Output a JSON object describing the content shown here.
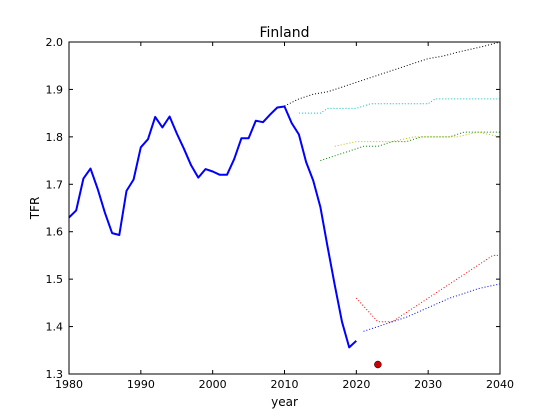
{
  "chart_data": {
    "type": "line",
    "title": "Finland",
    "xlabel": "year",
    "ylabel": "TFR",
    "xlim": [
      1980,
      2040
    ],
    "ylim": [
      1.3,
      2.0
    ],
    "x_ticks": [
      "1980",
      "1990",
      "2000",
      "2010",
      "2020",
      "2030",
      "2040"
    ],
    "y_ticks": [
      "1.3",
      "1.4",
      "1.5",
      "1.6",
      "1.7",
      "1.8",
      "1.9",
      "2.0"
    ],
    "grid": false,
    "legend": "none",
    "series": [
      {
        "color": "#0000ff",
        "style": "solid",
        "x": [
          1980,
          1981,
          1982,
          1983,
          1984,
          1985,
          1986,
          1987,
          1988,
          1989,
          1990,
          1991,
          1992,
          1993,
          1994,
          1995,
          1996,
          1997,
          1998,
          1999,
          2000,
          2001,
          2002,
          2003,
          2004,
          2005,
          2006,
          2007,
          2008,
          2009,
          2010,
          2011,
          2012,
          2013,
          2014,
          2015,
          2016,
          2017,
          2018,
          2019,
          2020
        ],
        "y": [
          1.63,
          1.645,
          1.712,
          1.733,
          1.69,
          1.64,
          1.597,
          1.593,
          1.686,
          1.71,
          1.778,
          1.795,
          1.842,
          1.82,
          1.843,
          1.807,
          1.775,
          1.74,
          1.714,
          1.732,
          1.727,
          1.72,
          1.72,
          1.753,
          1.797,
          1.797,
          1.834,
          1.831,
          1.847,
          1.862,
          1.864,
          1.829,
          1.805,
          1.747,
          1.708,
          1.652,
          1.568,
          1.487,
          1.41,
          1.356,
          1.37
        ]
      },
      {
        "color": "#000000",
        "style": "dotted",
        "x": [
          2010,
          2012,
          2014,
          2016,
          2018,
          2020,
          2022,
          2024,
          2026,
          2028,
          2030,
          2032,
          2034,
          2036,
          2038,
          2040
        ],
        "y": [
          1.865,
          1.88,
          1.89,
          1.895,
          1.905,
          1.915,
          1.925,
          1.935,
          1.945,
          1.955,
          1.965,
          1.97,
          1.978,
          1.985,
          1.992,
          2.0
        ]
      },
      {
        "color": "#00bfbf",
        "style": "dotted",
        "x": [
          2012,
          2015,
          2016,
          2020,
          2022,
          2026,
          2030,
          2031,
          2035,
          2040
        ],
        "y": [
          1.85,
          1.85,
          1.86,
          1.86,
          1.87,
          1.87,
          1.87,
          1.88,
          1.88,
          1.88
        ]
      },
      {
        "color": "#008000",
        "style": "dotted",
        "x": [
          2015,
          2017,
          2019,
          2021,
          2023,
          2025,
          2027,
          2029,
          2031,
          2033,
          2035,
          2037,
          2040
        ],
        "y": [
          1.75,
          1.76,
          1.77,
          1.78,
          1.78,
          1.79,
          1.79,
          1.8,
          1.8,
          1.8,
          1.81,
          1.81,
          1.81
        ]
      },
      {
        "color": "#bfbf00",
        "style": "dotted",
        "x": [
          2017,
          2020,
          2022,
          2025,
          2028,
          2031,
          2034,
          2037,
          2040
        ],
        "y": [
          1.78,
          1.79,
          1.79,
          1.79,
          1.8,
          1.8,
          1.8,
          1.81,
          1.8
        ]
      },
      {
        "color": "#ff0000",
        "style": "dotted",
        "x": [
          2020,
          2023,
          2025,
          2027,
          2030,
          2033,
          2036,
          2039,
          2040
        ],
        "y": [
          1.46,
          1.41,
          1.41,
          1.43,
          1.46,
          1.49,
          1.52,
          1.55,
          1.55
        ]
      },
      {
        "color": "#0000ff",
        "style": "dotted",
        "x": [
          2021,
          2023,
          2025,
          2027,
          2030,
          2033,
          2035,
          2037,
          2040
        ],
        "y": [
          1.39,
          1.4,
          1.41,
          1.42,
          1.44,
          1.46,
          1.47,
          1.48,
          1.49
        ]
      }
    ],
    "points": [
      {
        "x": 2023,
        "y": 1.32,
        "color": "#cc0000"
      }
    ]
  }
}
